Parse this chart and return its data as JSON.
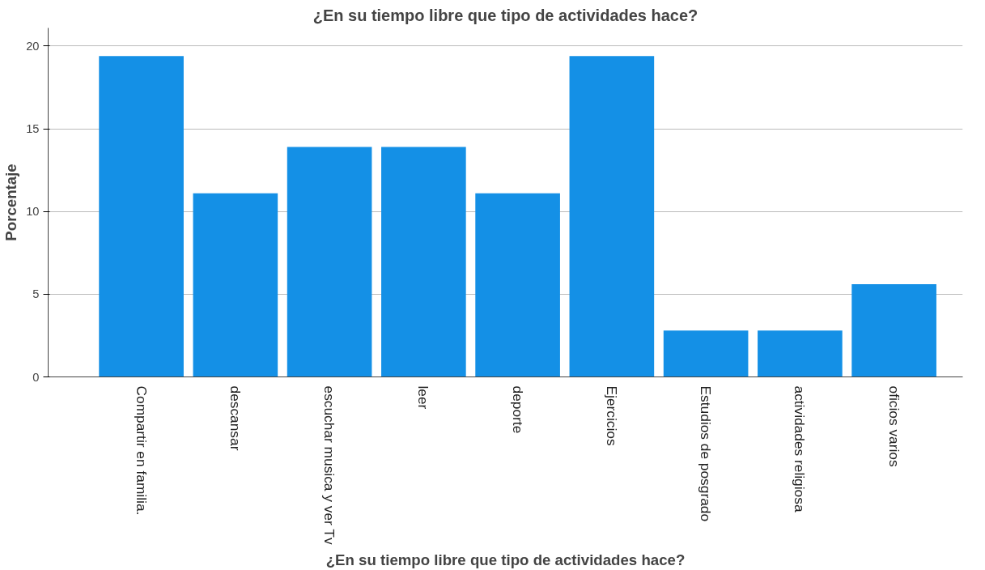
{
  "chart_data": {
    "type": "bar",
    "title": "¿En su tiempo libre que tipo de actividades hace?",
    "xlabel": "¿En su tiempo libre que tipo de actividades hace?",
    "ylabel": "Porcentaje",
    "categories": [
      "Compartir en familia.",
      "descansar",
      "escuchar musica y ver Tv",
      "leer",
      "deporte",
      "Ejercicios",
      "Estudios de posgrado",
      "actividades religiosa",
      "oficios varios"
    ],
    "values": [
      19.4,
      11.1,
      13.9,
      13.9,
      11.1,
      19.4,
      2.8,
      2.8,
      5.6
    ],
    "color": "#1490e6",
    "ylim": [
      0,
      21.1
    ],
    "yticks": [
      0,
      5,
      10,
      15,
      20
    ],
    "grid": "y"
  }
}
